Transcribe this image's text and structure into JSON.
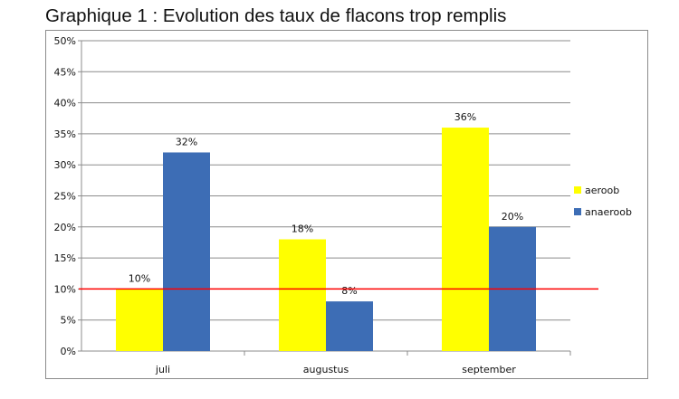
{
  "chart_data": {
    "type": "bar",
    "title": "Graphique 1 : Evolution des taux de flacons trop remplis",
    "xlabel": "",
    "ylabel": "",
    "categories": [
      "juli",
      "augustus",
      "september"
    ],
    "series": [
      {
        "name": "aeroob",
        "color": "#ffff00",
        "values": [
          10,
          18,
          36
        ]
      },
      {
        "name": "anaeroob",
        "color": "#3d6db5",
        "values": [
          32,
          8,
          20
        ]
      }
    ],
    "data_labels": [
      [
        "10%",
        "18%",
        "36%"
      ],
      [
        "32%",
        "8%",
        "20%"
      ]
    ],
    "ylim": [
      0,
      50
    ],
    "yticks": [
      "0%",
      "5%",
      "10%",
      "15%",
      "20%",
      "25%",
      "30%",
      "35%",
      "40%",
      "45%",
      "50%"
    ],
    "reference_line": {
      "value": 10,
      "color": "#ff0000"
    },
    "grid": true,
    "legend_position": "right"
  }
}
